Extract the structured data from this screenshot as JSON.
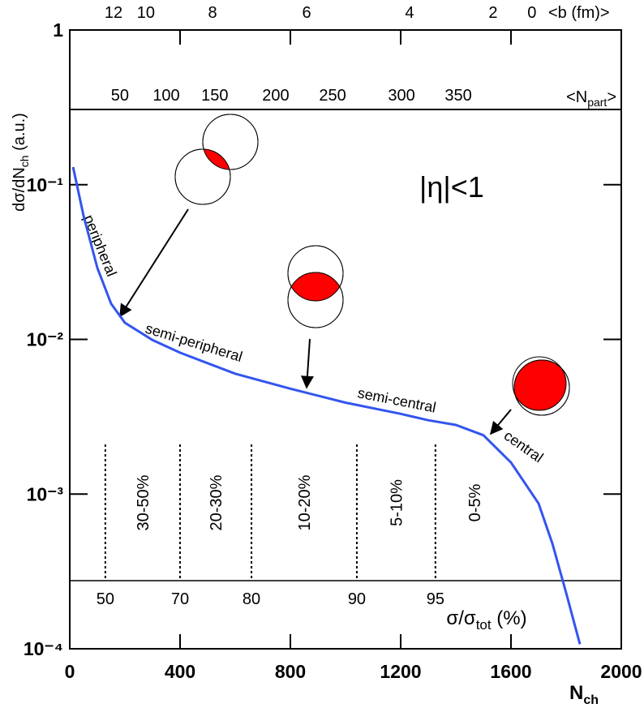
{
  "chart_data": {
    "type": "line",
    "x_label": {
      "main": "N",
      "sub": "ch"
    },
    "y_label": {
      "main": "dσ/dN",
      "sub": "ch",
      "unit": " (a.u.)"
    },
    "xlim": [
      0,
      2000
    ],
    "ylim": [
      0.0001,
      1
    ],
    "log_y": true,
    "xticks": [
      0,
      400,
      800,
      1200,
      1600,
      2000
    ],
    "yticks": [
      {
        "value": 0.0001,
        "label": "10⁻⁴"
      },
      {
        "value": 0.001,
        "label": "10⁻³"
      },
      {
        "value": 0.01,
        "label": "10⁻²"
      },
      {
        "value": 0.1,
        "label": "10⁻¹"
      },
      1
    ],
    "x": [
      12,
      50,
      100,
      150,
      200,
      300,
      400,
      600,
      800,
      1000,
      1200,
      1300,
      1400,
      1500,
      1600,
      1700,
      1750,
      1800,
      1850
    ],
    "series": [
      {
        "color": "#3355ee",
        "values": [
          0.13,
          0.063,
          0.029,
          0.017,
          0.0128,
          0.0099,
          0.0082,
          0.006,
          0.0048,
          0.0039,
          0.0033,
          0.003,
          0.0028,
          0.0024,
          0.0016,
          0.00087,
          0.00048,
          0.00023,
          0.000107
        ]
      }
    ],
    "b_axis": {
      "label": "<b (fm)>",
      "ticks": [
        12,
        10,
        8,
        6,
        4,
        2,
        0
      ],
      "ticks_at_nch": [
        159,
        276,
        518,
        859,
        1232,
        1535,
        1676
      ]
    },
    "npart_axis": {
      "label": {
        "main": "<N",
        "sub": "part",
        "end": ">"
      },
      "ticks": [
        50,
        100,
        150,
        200,
        250,
        300,
        350
      ],
      "ticks_at_nch": [
        182,
        350,
        526,
        747,
        953,
        1203,
        1409
      ]
    },
    "centrality_axis": {
      "label": {
        "main": "σ/σ",
        "sub": "tot",
        "unit": " (%)"
      },
      "ticks": [
        50,
        70,
        80,
        90,
        95
      ],
      "ticks_at_nch": [
        129,
        400,
        659,
        1041,
        1326
      ],
      "ranges": [
        "30-50%",
        "20-30%",
        "10-20%",
        "5-10%",
        "0-5%"
      ]
    },
    "annotations": {
      "eta": "|η|<1",
      "peripheral": "peripheral",
      "semi_peripheral": "semi-peripheral",
      "semi_central": "semi-central",
      "central": "central"
    }
  }
}
